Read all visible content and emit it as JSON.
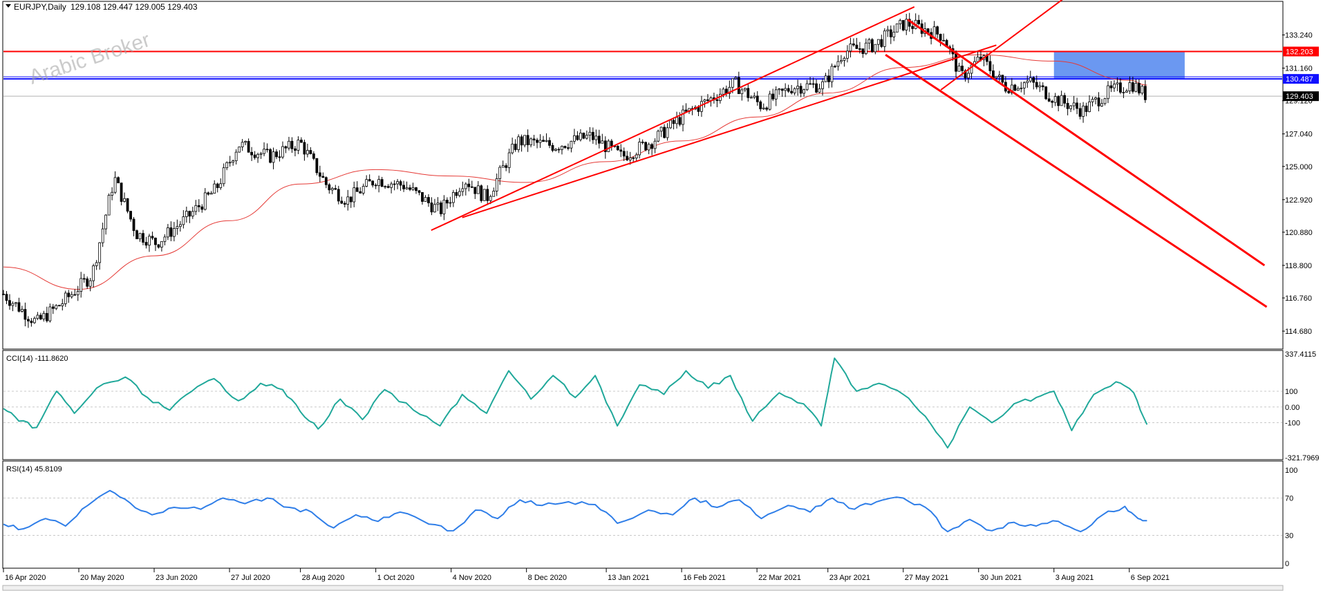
{
  "header": {
    "symbol": "EURJPY,Daily",
    "ohlc": "129.108 129.447 129.005 129.403"
  },
  "watermark": "Arabic Broker",
  "colors": {
    "candle": "#000000",
    "ma": "#e53935",
    "resistance": "#ff0000",
    "support_blue": "#1010ff",
    "zone": "#5b8def",
    "cci": "#20a89a",
    "rsi": "#2f7ee8",
    "grid": "#c8c8c8"
  },
  "chart_data": [
    {
      "type": "candlestick",
      "panel": "price",
      "ylim": [
        113.6,
        135.3
      ],
      "y_ticks": [
        "133.240",
        "131.160",
        "129.120",
        "127.040",
        "125.000",
        "122.920",
        "120.880",
        "118.800",
        "116.760",
        "114.680"
      ],
      "x_ticks": [
        "16 Apr 2020",
        "20 May 2020",
        "23 Jun 2020",
        "27 Jul 2020",
        "28 Aug 2020",
        "1 Oct 2020",
        "4 Nov 2020",
        "8 Dec 2020",
        "13 Jan 2021",
        "16 Feb 2021",
        "22 Mar 2021",
        "23 Apr 2021",
        "27 May 2021",
        "30 Jun 2021",
        "3 Aug 2021",
        "6 Sep 2021"
      ],
      "close_path": [
        [
          "16 Apr 2020",
          117.0
        ],
        [
          "1 May 2020",
          115.2
        ],
        [
          "12 May 2020",
          116.4
        ],
        [
          "26 May 2020",
          118.2
        ],
        [
          "5 Jun 2020",
          124.3
        ],
        [
          "15 Jun 2020",
          120.8
        ],
        [
          "24 Jun 2020",
          120.2
        ],
        [
          "8 Jul 2020",
          121.8
        ],
        [
          "21 Jul 2020",
          123.6
        ],
        [
          "31 Jul 2020",
          126.4
        ],
        [
          "14 Aug 2020",
          125.6
        ],
        [
          "28 Aug 2020",
          126.5
        ],
        [
          "9 Sep 2020",
          123.8
        ],
        [
          "18 Sep 2020",
          122.9
        ],
        [
          "1 Oct 2020",
          124.2
        ],
        [
          "14 Oct 2020",
          123.8
        ],
        [
          "30 Oct 2020",
          122.2
        ],
        [
          "10 Nov 2020",
          124.2
        ],
        [
          "20 Nov 2020",
          123.0
        ],
        [
          "4 Dec 2020",
          126.6
        ],
        [
          "21 Dec 2020",
          126.3
        ],
        [
          "6 Jan 2021",
          126.9
        ],
        [
          "20 Jan 2021",
          125.6
        ],
        [
          "3 Feb 2021",
          126.6
        ],
        [
          "17 Feb 2021",
          128.2
        ],
        [
          "3 Mar 2021",
          129.4
        ],
        [
          "12 Mar 2021",
          130.2
        ],
        [
          "24 Mar 2021",
          128.8
        ],
        [
          "7 Apr 2021",
          130.0
        ],
        [
          "21 Apr 2021",
          130.1
        ],
        [
          "30 Apr 2021",
          132.2
        ],
        [
          "14 May 2021",
          132.6
        ],
        [
          "28 May 2021",
          134.0
        ],
        [
          "14 Jun 2021",
          133.2
        ],
        [
          "22 Jun 2021",
          130.6
        ],
        [
          "1 Jul 2021",
          131.8
        ],
        [
          "12 Jul 2021",
          130.0
        ],
        [
          "23 Jul 2021",
          130.3
        ],
        [
          "4 Aug 2021",
          129.2
        ],
        [
          "16 Aug 2021",
          128.5
        ],
        [
          "27 Aug 2021",
          129.6
        ],
        [
          "7 Sep 2021",
          130.2
        ],
        [
          "14 Sep 2021",
          129.4
        ]
      ],
      "ma_path": [
        [
          "16 Apr 2020",
          118.7
        ],
        [
          "20 May 2020",
          117.3
        ],
        [
          "23 Jun 2020",
          119.4
        ],
        [
          "27 Jul 2020",
          121.6
        ],
        [
          "28 Aug 2020",
          123.9
        ],
        [
          "1 Oct 2020",
          124.8
        ],
        [
          "4 Nov 2020",
          124.4
        ],
        [
          "8 Dec 2020",
          124.0
        ],
        [
          "13 Jan 2021",
          125.3
        ],
        [
          "16 Feb 2021",
          126.6
        ],
        [
          "22 Mar 2021",
          128.1
        ],
        [
          "23 Apr 2021",
          129.6
        ],
        [
          "27 May 2021",
          131.2
        ],
        [
          "30 Jun 2021",
          132.0
        ],
        [
          "3 Aug 2021",
          131.6
        ],
        [
          "6 Sep 2021",
          130.4
        ],
        [
          "14 Sep 2021",
          130.1
        ]
      ],
      "horizontal_lines": [
        {
          "label": "132.203",
          "value": 132.203,
          "color": "#ff0000"
        },
        {
          "label": "130.487",
          "value": 130.487,
          "color": "#1010ff"
        },
        {
          "label": "129.403",
          "value": 129.403,
          "color": "#000000"
        }
      ],
      "zone": {
        "from": "3 Aug 2021",
        "to": "1 Oct 2021",
        "low": 130.487,
        "high": 132.203
      },
      "trend_lines": [
        {
          "from": [
            "26 Oct 2020",
            121.0
          ],
          "to": [
            "1 Jun 2021",
            135.0
          ]
        },
        {
          "from": [
            "9 Nov 2020",
            121.8
          ],
          "to": [
            "8 Jul 2021",
            132.6
          ]
        },
        {
          "from": [
            "13 Jun 2021",
            129.8
          ],
          "to": [
            "14 Aug 2021",
            136.2
          ]
        },
        {
          "from": [
            "29 May 2021",
            134.2
          ],
          "to": [
            "6 Nov 2021",
            118.8
          ]
        },
        {
          "from": [
            "19 May 2021",
            132.0
          ],
          "to": [
            "7 Nov 2021",
            116.2
          ]
        }
      ]
    },
    {
      "type": "line",
      "panel": "cci",
      "title": "CCI(14) -111.8620",
      "ylim": [
        -321.7969,
        337.4115
      ],
      "y_ticks": [
        "337.4115",
        "100",
        "0.00",
        "-100",
        "-321.7969"
      ],
      "levels": [
        100,
        0,
        -100
      ],
      "series": [
        {
          "name": "CCI(14)",
          "points": [
            [
              "16 Apr 2020",
              -10
            ],
            [
              "23 Apr 2020",
              -90
            ],
            [
              "1 May 2020",
              -130
            ],
            [
              "10 May 2020",
              100
            ],
            [
              "18 May 2020",
              -40
            ],
            [
              "28 May 2020",
              120
            ],
            [
              "10 Jun 2020",
              190
            ],
            [
              "20 Jun 2020",
              60
            ],
            [
              "30 Jun 2020",
              -20
            ],
            [
              "10 Jul 2020",
              100
            ],
            [
              "20 Jul 2020",
              180
            ],
            [
              "31 Jul 2020",
              40
            ],
            [
              "10 Aug 2020",
              150
            ],
            [
              "20 Aug 2020",
              110
            ],
            [
              "28 Aug 2020",
              -30
            ],
            [
              "5 Sep 2020",
              -140
            ],
            [
              "15 Sep 2020",
              50
            ],
            [
              "25 Sep 2020",
              -80
            ],
            [
              "5 Oct 2020",
              110
            ],
            [
              "18 Oct 2020",
              -20
            ],
            [
              "30 Oct 2020",
              -120
            ],
            [
              "9 Nov 2020",
              80
            ],
            [
              "20 Nov 2020",
              -40
            ],
            [
              "30 Nov 2020",
              230
            ],
            [
              "10 Dec 2020",
              50
            ],
            [
              "20 Dec 2020",
              200
            ],
            [
              "30 Dec 2020",
              60
            ],
            [
              "8 Jan 2021",
              200
            ],
            [
              "18 Jan 2021",
              -120
            ],
            [
              "28 Jan 2021",
              140
            ],
            [
              "8 Feb 2021",
              80
            ],
            [
              "18 Feb 2021",
              230
            ],
            [
              "28 Feb 2021",
              120
            ],
            [
              "10 Mar 2021",
              200
            ],
            [
              "20 Mar 2021",
              -90
            ],
            [
              "1 Apr 2021",
              90
            ],
            [
              "12 Apr 2021",
              20
            ],
            [
              "20 Apr 2021",
              -120
            ],
            [
              "26 Apr 2021",
              310
            ],
            [
              "6 May 2021",
              100
            ],
            [
              "16 May 2021",
              150
            ],
            [
              "27 May 2021",
              80
            ],
            [
              "6 Jun 2021",
              -60
            ],
            [
              "16 Jun 2021",
              -260
            ],
            [
              "26 Jun 2021",
              0
            ],
            [
              "6 Jul 2021",
              -100
            ],
            [
              "16 Jul 2021",
              20
            ],
            [
              "26 Jul 2021",
              60
            ],
            [
              "3 Aug 2021",
              100
            ],
            [
              "11 Aug 2021",
              -150
            ],
            [
              "21 Aug 2021",
              80
            ],
            [
              "31 Aug 2021",
              160
            ],
            [
              "8 Sep 2021",
              90
            ],
            [
              "14 Sep 2021",
              -111.86
            ]
          ]
        }
      ]
    },
    {
      "type": "line",
      "panel": "rsi",
      "title": "RSI(14) 45.8109",
      "ylim": [
        0,
        100
      ],
      "y_ticks": [
        "100",
        "70",
        "30",
        "0"
      ],
      "levels": [
        70,
        30
      ],
      "series": [
        {
          "name": "RSI(14)",
          "points": [
            [
              "16 Apr 2020",
              42
            ],
            [
              "25 Apr 2020",
              37
            ],
            [
              "5 May 2020",
              48
            ],
            [
              "14 May 2020",
              40
            ],
            [
              "24 May 2020",
              62
            ],
            [
              "3 Jun 2020",
              78
            ],
            [
              "12 Jun 2020",
              65
            ],
            [
              "22 Jun 2020",
              52
            ],
            [
              "2 Jul 2020",
              60
            ],
            [
              "14 Jul 2020",
              58
            ],
            [
              "24 Jul 2020",
              70
            ],
            [
              "3 Aug 2020",
              64
            ],
            [
              "13 Aug 2020",
              70
            ],
            [
              "23 Aug 2020",
              60
            ],
            [
              "2 Sep 2020",
              55
            ],
            [
              "12 Sep 2020",
              38
            ],
            [
              "22 Sep 2020",
              52
            ],
            [
              "2 Oct 2020",
              45
            ],
            [
              "12 Oct 2020",
              55
            ],
            [
              "25 Oct 2020",
              42
            ],
            [
              "5 Nov 2020",
              35
            ],
            [
              "15 Nov 2020",
              57
            ],
            [
              "25 Nov 2020",
              48
            ],
            [
              "5 Dec 2020",
              68
            ],
            [
              "15 Dec 2020",
              62
            ],
            [
              "27 Dec 2020",
              66
            ],
            [
              "8 Jan 2021",
              63
            ],
            [
              "18 Jan 2021",
              43
            ],
            [
              "1 Feb 2021",
              57
            ],
            [
              "12 Feb 2021",
              52
            ],
            [
              "22 Feb 2021",
              70
            ],
            [
              "4 Mar 2021",
              60
            ],
            [
              "14 Mar 2021",
              68
            ],
            [
              "24 Mar 2021",
              48
            ],
            [
              "5 Apr 2021",
              62
            ],
            [
              "15 Apr 2021",
              55
            ],
            [
              "25 Apr 2021",
              70
            ],
            [
              "5 May 2021",
              58
            ],
            [
              "15 May 2021",
              66
            ],
            [
              "27 May 2021",
              70
            ],
            [
              "6 Jun 2021",
              60
            ],
            [
              "16 Jun 2021",
              34
            ],
            [
              "26 Jun 2021",
              47
            ],
            [
              "6 Jul 2021",
              35
            ],
            [
              "16 Jul 2021",
              44
            ],
            [
              "26 Jul 2021",
              40
            ],
            [
              "5 Aug 2021",
              45
            ],
            [
              "15 Aug 2021",
              34
            ],
            [
              "25 Aug 2021",
              52
            ],
            [
              "4 Sep 2021",
              61
            ],
            [
              "10 Sep 2021",
              48
            ],
            [
              "14 Sep 2021",
              45.81
            ]
          ]
        }
      ]
    }
  ]
}
